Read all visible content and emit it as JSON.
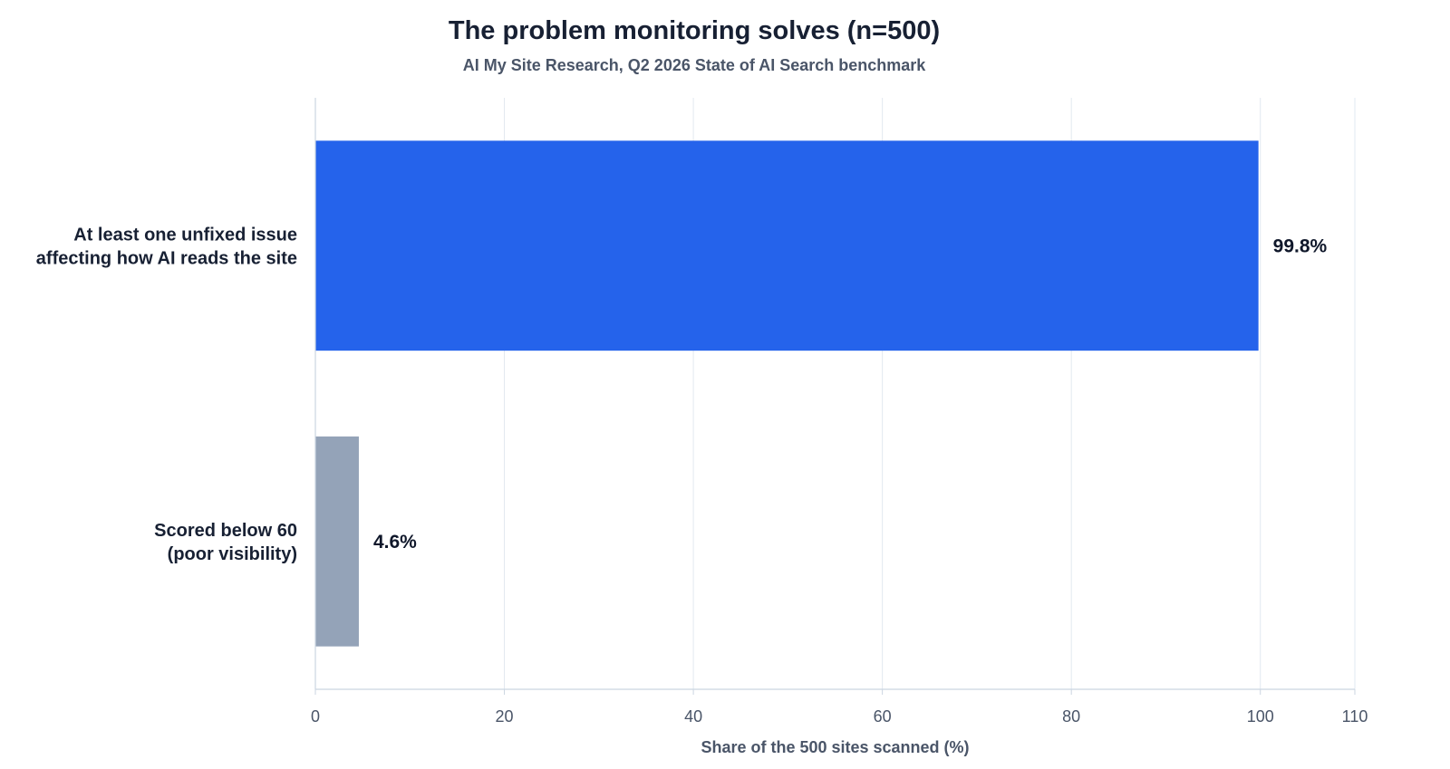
{
  "chart_data": {
    "type": "bar",
    "orientation": "horizontal",
    "title": "The problem monitoring solves (n=500)",
    "subtitle": "AI My Site Research, Q2 2026 State of AI Search benchmark",
    "xlabel": "Share of the 500 sites scanned (%)",
    "ylabel": "",
    "xlim": [
      0,
      110
    ],
    "xticks": [
      0,
      20,
      40,
      60,
      80,
      100,
      110
    ],
    "grid": true,
    "categories": [
      [
        "At least one unfixed issue",
        "affecting how AI reads the site"
      ],
      [
        "Scored below 60",
        "(poor visibility)"
      ]
    ],
    "values": [
      99.8,
      4.6
    ],
    "value_labels": [
      "99.8%",
      "4.6%"
    ],
    "colors": [
      "#2563eb",
      "#94a3b8"
    ]
  }
}
